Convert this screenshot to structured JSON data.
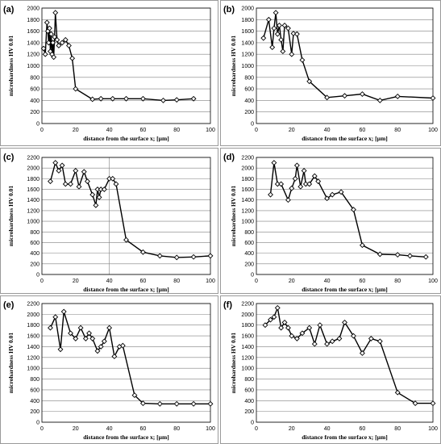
{
  "chart_data": [
    {
      "type": "line",
      "label": "(a)",
      "xlabel": "distance from the surface x; [µm]",
      "ylabel": "microhardness HV 0.01",
      "xlim": [
        0,
        100
      ],
      "ylim": [
        0,
        2000
      ],
      "xticks": [
        0,
        20,
        40,
        60,
        80,
        100
      ],
      "yticks": [
        0,
        200,
        400,
        600,
        800,
        1000,
        1200,
        1400,
        1600,
        1800,
        2000
      ],
      "grid": "horizontal",
      "x": [
        1,
        2,
        3,
        3.5,
        4,
        4.5,
        5,
        5.5,
        6,
        6.5,
        7,
        7.5,
        8,
        9,
        10,
        12,
        14,
        16,
        18,
        20,
        30,
        35,
        42,
        50,
        60,
        72,
        80,
        90
      ],
      "y": [
        1300,
        1200,
        1750,
        1600,
        1400,
        1650,
        1250,
        1550,
        1200,
        1400,
        1150,
        1500,
        1920,
        1450,
        1350,
        1400,
        1450,
        1350,
        1130,
        600,
        420,
        430,
        430,
        430,
        430,
        400,
        410,
        430
      ]
    },
    {
      "type": "line",
      "label": "(b)",
      "xlabel": "distance from the surface x; [µm]",
      "ylabel": "microhardness HV 0.01",
      "xlim": [
        0,
        100
      ],
      "ylim": [
        0,
        2000
      ],
      "xticks": [
        0,
        20,
        40,
        60,
        80,
        100
      ],
      "yticks": [
        0,
        200,
        400,
        600,
        800,
        1000,
        1200,
        1400,
        1600,
        1800,
        2000
      ],
      "grid": "horizontal",
      "x": [
        4,
        7,
        9,
        10,
        11,
        12,
        13,
        14,
        15,
        16,
        18,
        20,
        21,
        23,
        26,
        30,
        40,
        50,
        60,
        70,
        80,
        100
      ],
      "y": [
        1480,
        1800,
        1320,
        1650,
        1920,
        1550,
        1700,
        1450,
        1250,
        1700,
        1650,
        1200,
        1560,
        1550,
        1100,
        730,
        450,
        480,
        510,
        400,
        470,
        440
      ]
    },
    {
      "type": "line",
      "label": "(c)",
      "xlabel": "distance from the surface x; [µm]",
      "ylabel": "microhardness HV 0.01",
      "xlim": [
        0,
        100
      ],
      "ylim": [
        0,
        2200
      ],
      "xticks": [
        0,
        20,
        40,
        60,
        80,
        100
      ],
      "yticks": [
        0,
        200,
        400,
        600,
        800,
        1000,
        1200,
        1400,
        1600,
        1800,
        2000,
        2200
      ],
      "grid": "horizontal+x40",
      "x": [
        5,
        8,
        10,
        12,
        14,
        17,
        20,
        22,
        25,
        27,
        30,
        32,
        33,
        34,
        35,
        37,
        40,
        42,
        44,
        50,
        60,
        70,
        80,
        90,
        100
      ],
      "y": [
        1750,
        2100,
        1950,
        2050,
        1700,
        1700,
        1950,
        1650,
        1930,
        1750,
        1500,
        1300,
        1600,
        1450,
        1600,
        1600,
        1800,
        1800,
        1700,
        650,
        420,
        350,
        320,
        330,
        350
      ]
    },
    {
      "type": "line",
      "label": "(d)",
      "xlabel": "distance from the surface x; [µm]",
      "ylabel": "microhardness HV 0.01",
      "xlim": [
        0,
        100
      ],
      "ylim": [
        0,
        2200
      ],
      "xticks": [
        0,
        20,
        40,
        60,
        80,
        100
      ],
      "yticks": [
        0,
        200,
        400,
        600,
        800,
        1000,
        1200,
        1400,
        1600,
        1800,
        2000,
        2200
      ],
      "grid": "horizontal",
      "x": [
        8,
        10,
        12,
        14,
        18,
        20,
        22,
        23,
        25,
        27,
        28,
        30,
        33,
        35,
        40,
        43,
        48,
        55,
        60,
        70,
        80,
        87,
        96
      ],
      "y": [
        1500,
        2100,
        1700,
        1700,
        1400,
        1620,
        1800,
        2050,
        1650,
        1950,
        1700,
        1700,
        1850,
        1750,
        1430,
        1500,
        1550,
        1220,
        550,
        380,
        370,
        350,
        330
      ]
    },
    {
      "type": "line",
      "label": "(e)",
      "xlabel": "distance from the surface x; [µm]",
      "ylabel": "microhardness HV 0.01",
      "xlim": [
        0,
        100
      ],
      "ylim": [
        0,
        2200
      ],
      "xticks": [
        0,
        20,
        40,
        60,
        80,
        100
      ],
      "yticks": [
        0,
        200,
        400,
        600,
        800,
        1000,
        1200,
        1400,
        1600,
        1800,
        2000,
        2200
      ],
      "grid": "horizontal",
      "x": [
        5,
        8,
        11,
        13,
        17,
        20,
        23,
        26,
        28,
        30,
        33,
        35,
        37,
        40,
        43,
        46,
        48,
        55,
        60,
        70,
        80,
        90,
        100
      ],
      "y": [
        1750,
        1950,
        1350,
        2050,
        1650,
        1550,
        1750,
        1550,
        1650,
        1550,
        1320,
        1400,
        1500,
        1750,
        1220,
        1400,
        1420,
        500,
        350,
        340,
        340,
        340,
        340
      ]
    },
    {
      "type": "line",
      "label": "(f)",
      "xlabel": "distance from the surface x; [µm]",
      "ylabel": "microhardness HV 0.01",
      "xlim": [
        0,
        100
      ],
      "ylim": [
        0,
        2200
      ],
      "xticks": [
        0,
        20,
        40,
        60,
        80,
        100
      ],
      "yticks": [
        0,
        200,
        400,
        600,
        800,
        1000,
        1200,
        1400,
        1600,
        1800,
        2000,
        2200
      ],
      "grid": "horizontal",
      "x": [
        5,
        8,
        10,
        12,
        14,
        16,
        18,
        20,
        23,
        26,
        30,
        33,
        36,
        40,
        43,
        47,
        50,
        55,
        60,
        65,
        70,
        80,
        90,
        100
      ],
      "y": [
        1800,
        1900,
        1950,
        2120,
        1750,
        1850,
        1750,
        1600,
        1550,
        1650,
        1750,
        1450,
        1800,
        1450,
        1500,
        1550,
        1850,
        1600,
        1280,
        1550,
        1500,
        550,
        350,
        350
      ]
    }
  ]
}
